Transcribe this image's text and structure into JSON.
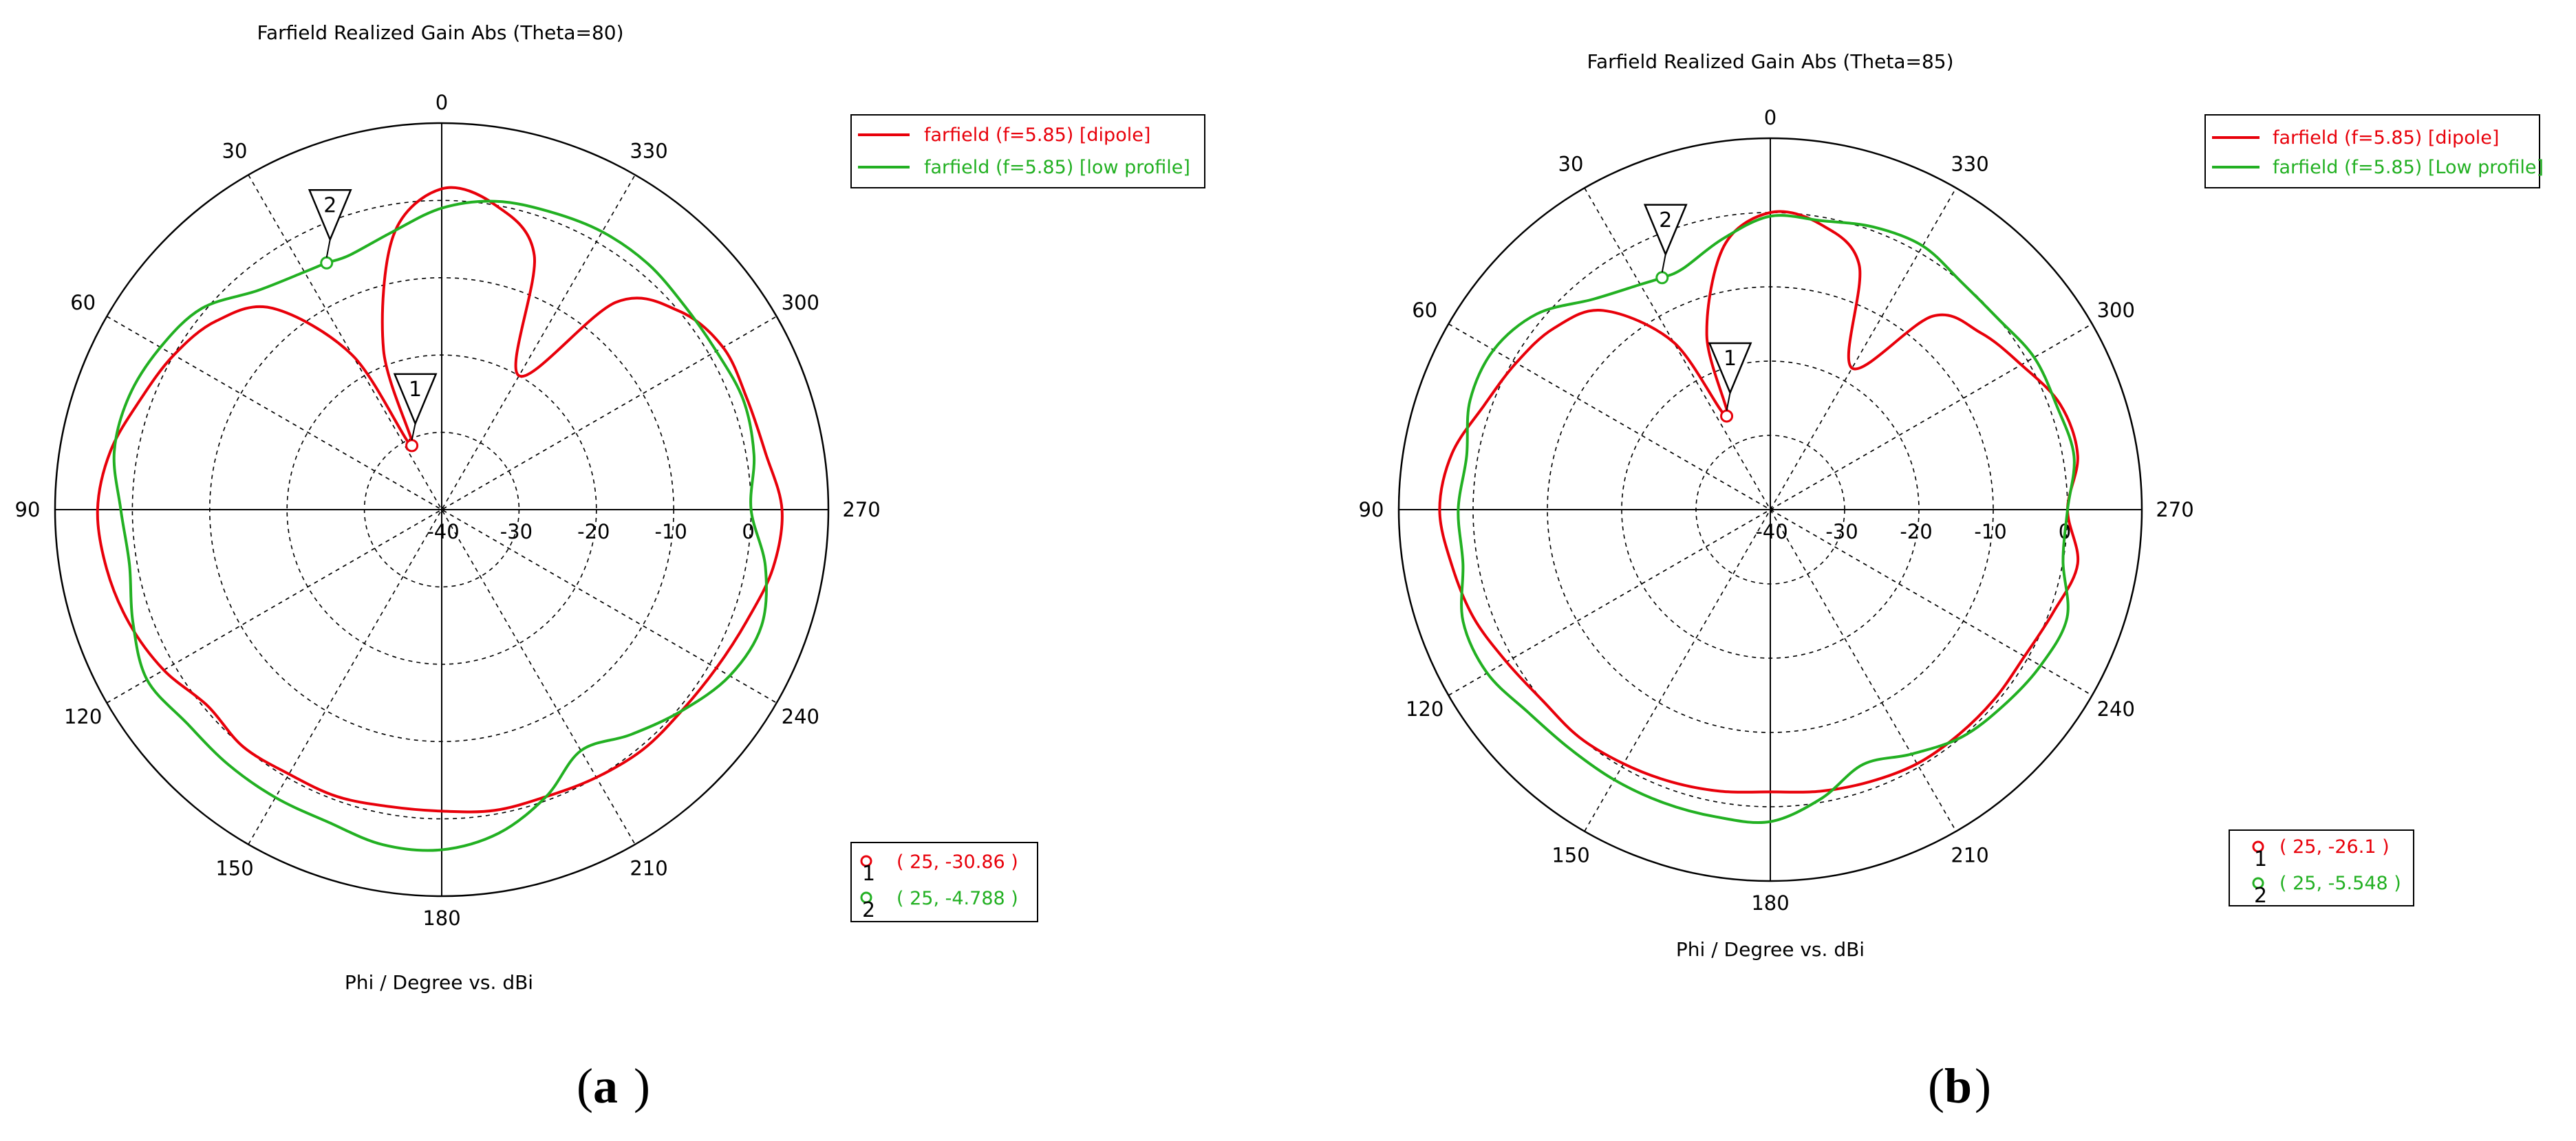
{
  "figure": {
    "panel_left": "(",
    "panel_right": ")"
  },
  "chart_data": [
    {
      "type": "polar",
      "panel": "a",
      "title": "Farfield Realized Gain Abs (Theta=80)",
      "xlabel": "Phi / Degree vs. dBi",
      "radial_ticks": [
        "-40",
        "-30",
        "-20",
        "-10",
        "0"
      ],
      "radial_range": [
        -40,
        10
      ],
      "angle_ticks": [
        "0",
        "30",
        "60",
        "90",
        "120",
        "150",
        "180",
        "210",
        "240",
        "270",
        "300",
        "330"
      ],
      "angle_direction": "counterclockwise, 0 at top",
      "grid": true,
      "legend_position": "top-right",
      "series": [
        {
          "name": "farfield (f=5.85) [dipole]",
          "color": "#e8000a",
          "phi": [
            0,
            10,
            20,
            25,
            30,
            40,
            50,
            60,
            70,
            80,
            90,
            100,
            110,
            120,
            130,
            140,
            150,
            160,
            170,
            180,
            190,
            200,
            210,
            220,
            230,
            240,
            250,
            260,
            270,
            280,
            290,
            300,
            310,
            320,
            330,
            340,
            350,
            360
          ],
          "gain": [
            1.5,
            -4,
            -18,
            -30.86,
            -17,
            -6,
            -2,
            0,
            1.5,
            3.5,
            4.5,
            4,
            3,
            1.5,
            -0.5,
            0,
            -0.5,
            -0.5,
            -1,
            -1,
            -0.5,
            -0.5,
            0,
            0.5,
            0.5,
            1,
            2,
            3.5,
            4,
            2.5,
            2,
            2,
            0,
            -5,
            -20,
            -5,
            0,
            1.5
          ]
        },
        {
          "name": "farfield (f=5.85) [low profile]",
          "color": "#22b022",
          "phi": [
            0,
            10,
            20,
            25,
            30,
            40,
            50,
            60,
            70,
            80,
            90,
            100,
            110,
            120,
            130,
            140,
            150,
            160,
            170,
            180,
            190,
            200,
            210,
            220,
            230,
            240,
            250,
            260,
            270,
            280,
            290,
            300,
            310,
            320,
            330,
            340,
            350,
            360
          ],
          "gain": [
            -1,
            -3.5,
            -5,
            -4.788,
            -4.5,
            -3,
            0.5,
            2,
            3,
            3,
            1.5,
            1,
            2.5,
            4,
            3,
            3,
            3,
            3,
            4,
            4,
            2.5,
            -0.5,
            -4,
            -2,
            0.5,
            3,
            4,
            2.5,
            0,
            1,
            1.5,
            1,
            1,
            1.5,
            1.5,
            1,
            0.5,
            -1
          ]
        }
      ],
      "markers": [
        {
          "id": "1",
          "phi": 25,
          "gain": -30.86,
          "series": 0,
          "label": "( 25, -30.86 )"
        },
        {
          "id": "2",
          "phi": 25,
          "gain": -4.788,
          "series": 1,
          "label": "( 25, -4.788 )"
        }
      ]
    },
    {
      "type": "polar",
      "panel": "b",
      "title": "Farfield Realized Gain Abs (Theta=85)",
      "xlabel": "Phi / Degree vs. dBi",
      "radial_ticks": [
        "-40",
        "-30",
        "-20",
        "-10",
        "0"
      ],
      "radial_range": [
        -40,
        10
      ],
      "angle_ticks": [
        "0",
        "30",
        "60",
        "90",
        "120",
        "150",
        "180",
        "210",
        "240",
        "270",
        "300",
        "330"
      ],
      "angle_direction": "counterclockwise, 0 at top",
      "grid": true,
      "legend_position": "top-right",
      "series": [
        {
          "name": "farfield (f=5.85) [dipole]",
          "color": "#e8000a",
          "phi": [
            0,
            10,
            20,
            25,
            30,
            40,
            50,
            60,
            70,
            80,
            90,
            100,
            110,
            120,
            130,
            140,
            150,
            160,
            170,
            180,
            190,
            200,
            210,
            220,
            230,
            240,
            250,
            260,
            270,
            280,
            290,
            300,
            310,
            320,
            330,
            340,
            350,
            360
          ],
          "gain": [
            0,
            -4,
            -15,
            -26.1,
            -14,
            -5,
            -2,
            -0.5,
            1,
            3.5,
            4.5,
            3.5,
            2.5,
            1,
            0,
            0,
            -0.5,
            -1,
            -1.5,
            -2,
            -1.5,
            -1,
            -0.5,
            -0.5,
            -0.5,
            -0.5,
            0.5,
            2,
            0,
            2,
            1.5,
            -1,
            -3,
            -6,
            -18,
            -5,
            -1,
            0
          ]
        },
        {
          "name": "farfield (f=5.85) [Low profile]",
          "color": "#22b022",
          "phi": [
            0,
            10,
            20,
            25,
            30,
            40,
            50,
            60,
            70,
            80,
            90,
            100,
            110,
            120,
            130,
            140,
            150,
            160,
            170,
            180,
            190,
            200,
            210,
            220,
            230,
            240,
            250,
            260,
            270,
            280,
            290,
            300,
            310,
            320,
            330,
            340,
            350,
            360
          ],
          "gain": [
            -0.5,
            -3,
            -5.5,
            -5.548,
            -5,
            -3,
            1,
            3,
            3,
            1.5,
            2,
            2,
            4,
            4,
            2.5,
            2,
            2,
            2,
            2,
            2,
            -0.5,
            -3.5,
            -2,
            0,
            1,
            2,
            2.5,
            0,
            0,
            1.5,
            1,
            1,
            0,
            0,
            1,
            0.5,
            -0.5,
            -0.5
          ]
        }
      ],
      "markers": [
        {
          "id": "1",
          "phi": 25,
          "gain": -26.1,
          "series": 0,
          "label": "( 25, -26.1 )"
        },
        {
          "id": "2",
          "phi": 25,
          "gain": -5.548,
          "series": 1,
          "label": "( 25, -5.548 )"
        }
      ]
    }
  ]
}
